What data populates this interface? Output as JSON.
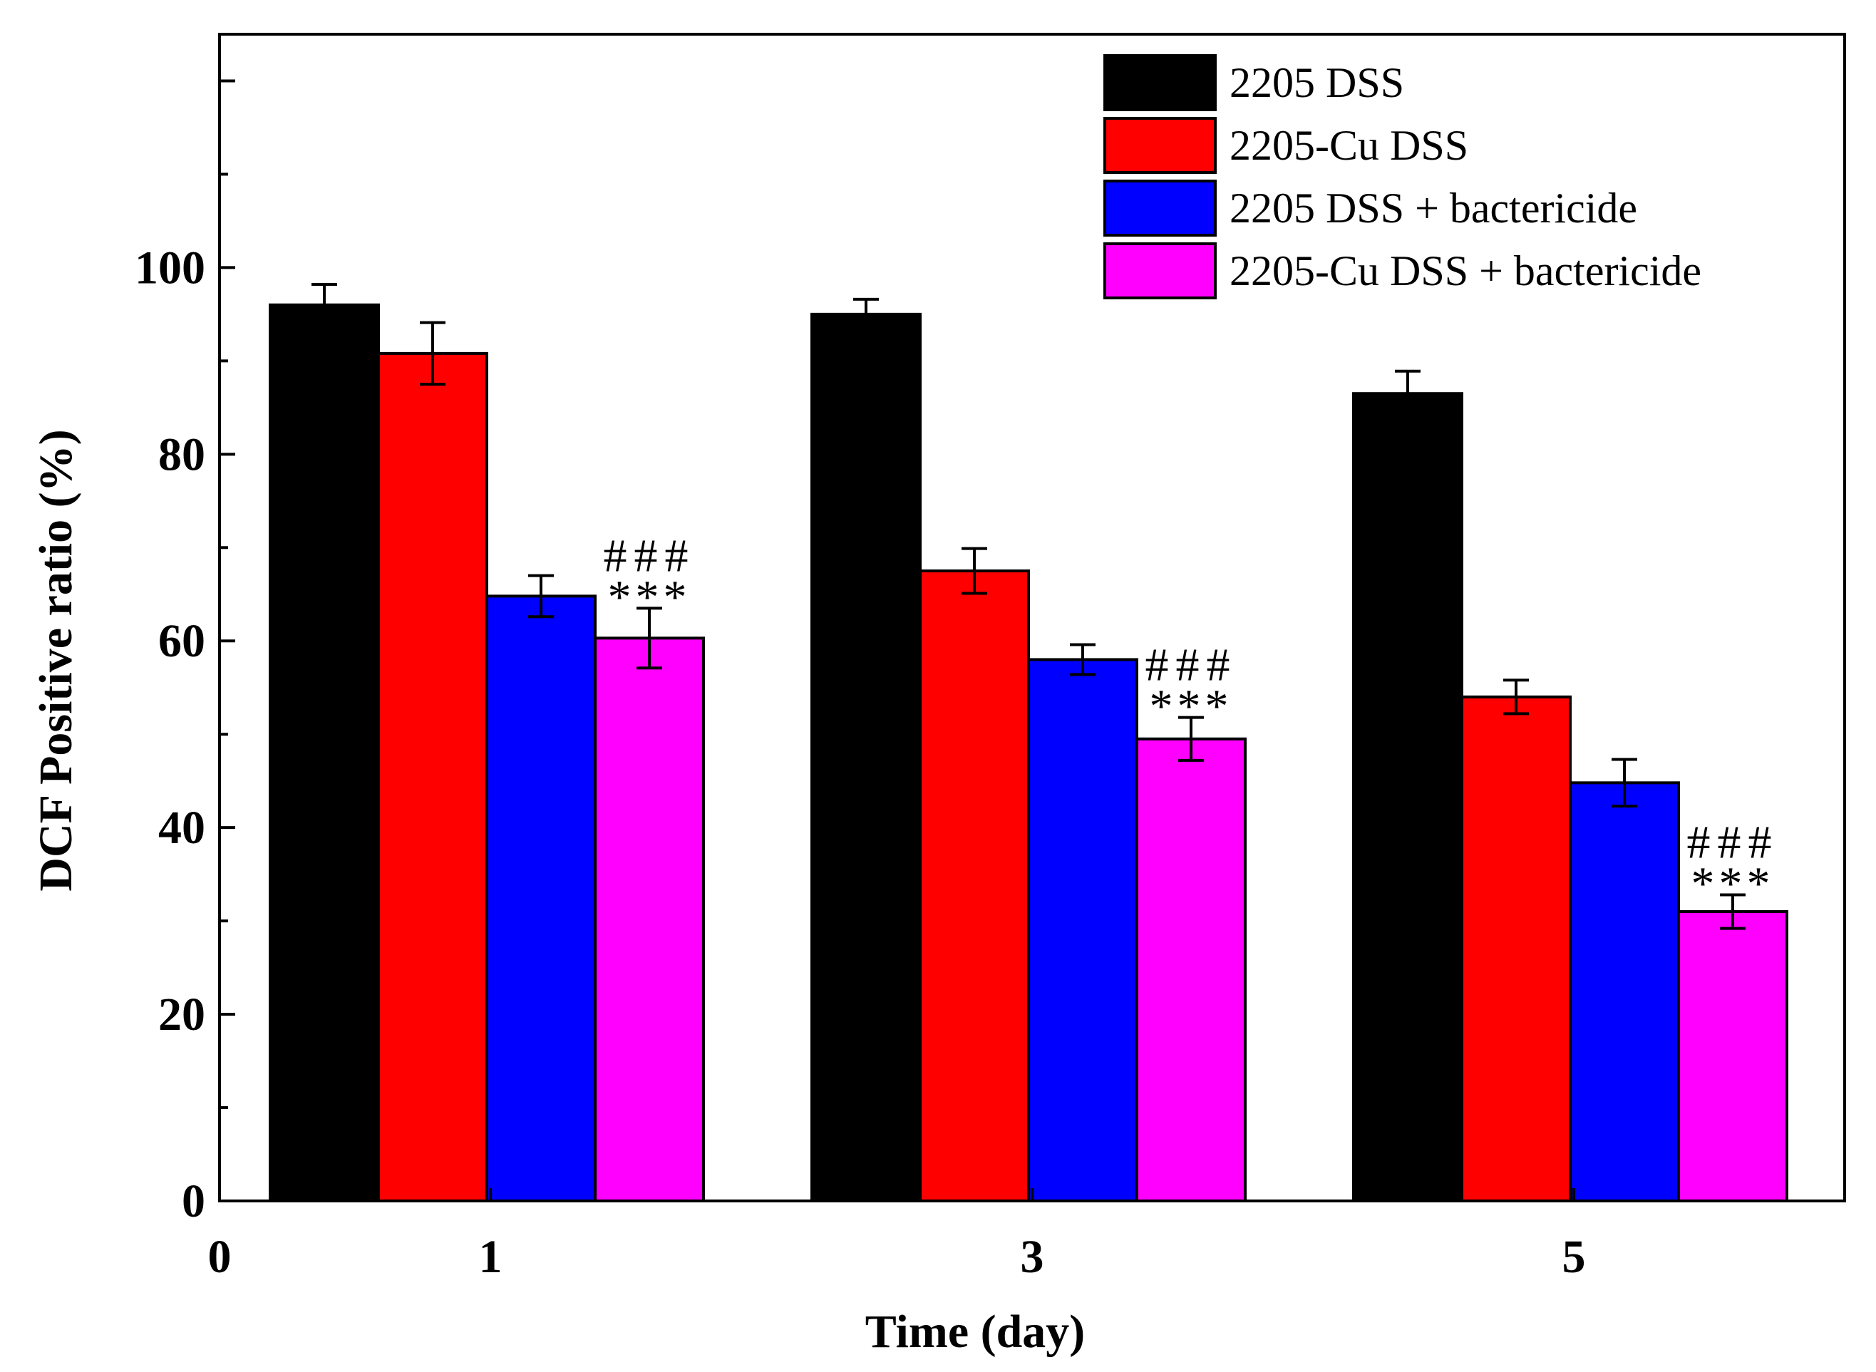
{
  "chart_data": {
    "type": "bar",
    "title": "",
    "xlabel": "Time (day)",
    "ylabel": "DCF Positive ratio (%)",
    "x_ticks": [
      "0",
      "1",
      "3",
      "5"
    ],
    "categories": [
      "1",
      "3",
      "5"
    ],
    "ylim": [
      0,
      125
    ],
    "y_ticks": [
      0,
      20,
      40,
      60,
      80,
      100
    ],
    "grid": false,
    "legend_position": "top-right",
    "series": [
      {
        "name": "2205 DSS",
        "color": "#000000",
        "values": [
          96,
          95,
          86.5
        ],
        "errors": [
          2.2,
          1.6,
          2.4
        ]
      },
      {
        "name": "2205-Cu DSS",
        "color": "#ff0000",
        "values": [
          90.8,
          67.5,
          54
        ],
        "errors": [
          3.3,
          2.4,
          1.8
        ]
      },
      {
        "name": "2205 DSS + bactericide",
        "color": "#0000ff",
        "values": [
          64.8,
          58,
          44.8
        ],
        "errors": [
          2.2,
          1.6,
          2.5
        ]
      },
      {
        "name": "2205-Cu DSS + bactericide",
        "color": "#ff00ff",
        "values": [
          60.3,
          49.5,
          31
        ],
        "errors": [
          3.2,
          2.3,
          1.8
        ]
      }
    ],
    "annotations": [
      {
        "category": "1",
        "series": "2205-Cu DSS + bactericide",
        "lines": [
          "###",
          "***"
        ]
      },
      {
        "category": "3",
        "series": "2205-Cu DSS + bactericide",
        "lines": [
          "###",
          "***"
        ]
      },
      {
        "category": "5",
        "series": "2205-Cu DSS + bactericide",
        "lines": [
          "###",
          "***"
        ]
      }
    ]
  }
}
